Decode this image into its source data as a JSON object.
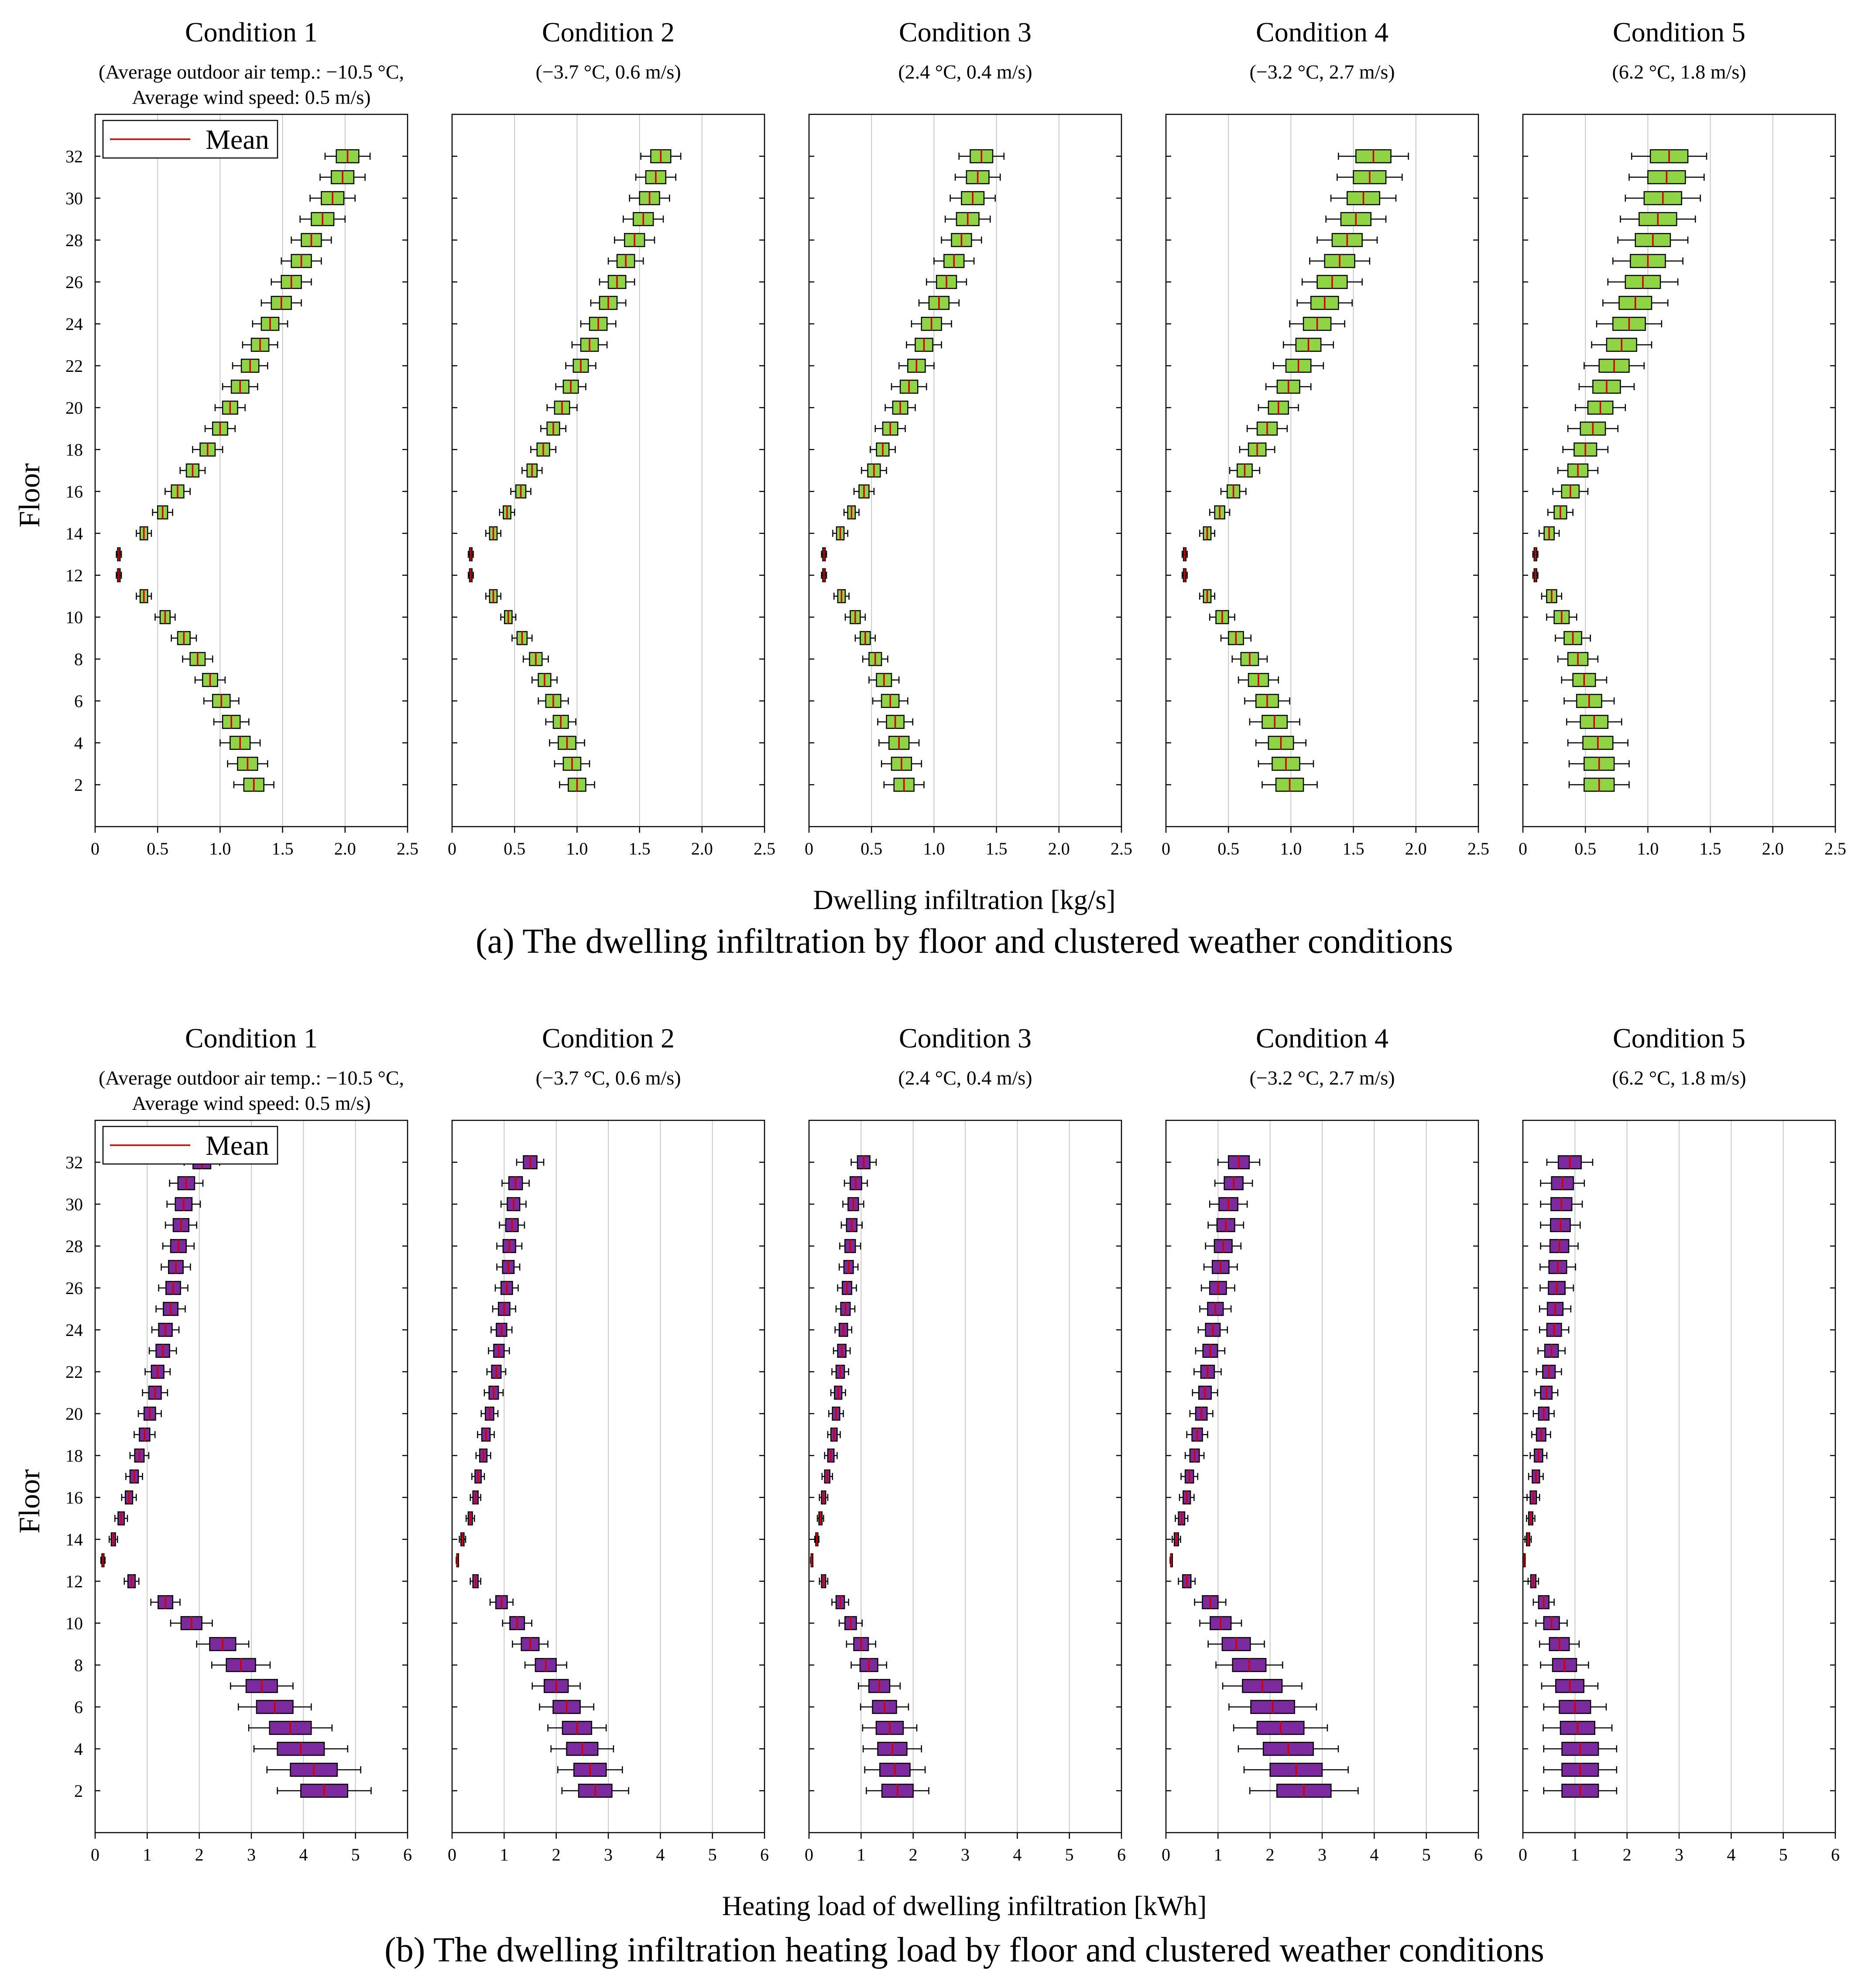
{
  "figure": {
    "row_a_caption": "(a) The dwelling infiltration by floor and clustered weather conditions",
    "row_b_caption": "(b) The dwelling infiltration heating load by floor and clustered weather conditions",
    "row_a_xlabel": "Dwelling infiltration [kg/s]",
    "row_b_xlabel": "Heating load of dwelling infiltration [kWh]",
    "ylabel": "Floor",
    "legend_label": "Mean",
    "box_color_a": "#8fd444",
    "box_color_b": "#7b2b9e",
    "mean_color": "#d40000"
  },
  "chart_data": [
    {
      "row": "a",
      "type": "box",
      "xlabel": "Dwelling infiltration [kg/s]",
      "ylabel": "Floor",
      "xlim": [
        0,
        2.5
      ],
      "ylim": [
        0,
        34
      ],
      "xticks": [
        "0",
        "0.5",
        "1.0",
        "1.5",
        "2.0",
        "2.5"
      ],
      "yticks": [
        "2",
        "4",
        "6",
        "8",
        "10",
        "12",
        "14",
        "16",
        "18",
        "20",
        "22",
        "24",
        "26",
        "28",
        "30",
        "32"
      ],
      "floors": [
        2,
        3,
        4,
        5,
        6,
        7,
        8,
        9,
        10,
        11,
        12,
        13,
        14,
        15,
        16,
        17,
        18,
        19,
        20,
        21,
        22,
        23,
        24,
        25,
        26,
        27,
        28,
        29,
        30,
        31,
        32
      ],
      "panels": [
        {
          "title": "Condition 1",
          "subtitle": "(Average outdoor air temp.: −10.5 °C,",
          "subtitle2": "Average wind speed: 0.5 m/s)",
          "mean": [
            1.27,
            1.22,
            1.16,
            1.09,
            1.01,
            0.92,
            0.82,
            0.71,
            0.56,
            0.39,
            0.19,
            0.19,
            0.39,
            0.54,
            0.66,
            0.78,
            0.9,
            1.0,
            1.08,
            1.16,
            1.24,
            1.32,
            1.4,
            1.49,
            1.57,
            1.65,
            1.73,
            1.82,
            1.9,
            1.98,
            2.02
          ],
          "spread": [
            0.08,
            0.08,
            0.08,
            0.07,
            0.07,
            0.06,
            0.06,
            0.05,
            0.04,
            0.03,
            0.01,
            0.01,
            0.03,
            0.04,
            0.05,
            0.05,
            0.06,
            0.06,
            0.06,
            0.07,
            0.07,
            0.07,
            0.07,
            0.08,
            0.08,
            0.08,
            0.08,
            0.09,
            0.09,
            0.09,
            0.09
          ]
        },
        {
          "title": "Condition 2",
          "subtitle": "(−3.7 °C, 0.6 m/s)",
          "subtitle2": "",
          "mean": [
            1.0,
            0.96,
            0.92,
            0.87,
            0.81,
            0.74,
            0.67,
            0.56,
            0.45,
            0.33,
            0.15,
            0.15,
            0.33,
            0.44,
            0.55,
            0.64,
            0.73,
            0.81,
            0.88,
            0.95,
            1.03,
            1.1,
            1.17,
            1.25,
            1.32,
            1.39,
            1.46,
            1.53,
            1.58,
            1.63,
            1.67
          ],
          "spread": [
            0.07,
            0.07,
            0.07,
            0.06,
            0.06,
            0.05,
            0.05,
            0.04,
            0.03,
            0.03,
            0.01,
            0.01,
            0.03,
            0.03,
            0.04,
            0.04,
            0.05,
            0.05,
            0.06,
            0.06,
            0.06,
            0.07,
            0.07,
            0.07,
            0.07,
            0.07,
            0.08,
            0.08,
            0.08,
            0.08,
            0.08
          ]
        },
        {
          "title": "Condition 3",
          "subtitle": "(2.4 °C, 0.4 m/s)",
          "subtitle2": "",
          "mean": [
            0.76,
            0.74,
            0.72,
            0.69,
            0.65,
            0.6,
            0.53,
            0.45,
            0.37,
            0.26,
            0.12,
            0.12,
            0.25,
            0.34,
            0.44,
            0.52,
            0.59,
            0.65,
            0.73,
            0.8,
            0.86,
            0.92,
            0.98,
            1.04,
            1.1,
            1.16,
            1.22,
            1.27,
            1.31,
            1.35,
            1.38
          ],
          "spread": [
            0.08,
            0.08,
            0.08,
            0.07,
            0.07,
            0.06,
            0.05,
            0.04,
            0.04,
            0.03,
            0.01,
            0.01,
            0.03,
            0.03,
            0.04,
            0.05,
            0.05,
            0.06,
            0.06,
            0.07,
            0.07,
            0.07,
            0.08,
            0.08,
            0.08,
            0.08,
            0.08,
            0.09,
            0.09,
            0.09,
            0.09
          ]
        },
        {
          "title": "Condition 4",
          "subtitle": "(−3.2 °C, 2.7 m/s)",
          "subtitle2": "",
          "mean": [
            0.99,
            0.96,
            0.92,
            0.87,
            0.81,
            0.74,
            0.67,
            0.56,
            0.45,
            0.33,
            0.15,
            0.15,
            0.33,
            0.43,
            0.54,
            0.63,
            0.73,
            0.81,
            0.9,
            0.98,
            1.06,
            1.14,
            1.21,
            1.27,
            1.33,
            1.39,
            1.45,
            1.52,
            1.58,
            1.63,
            1.66
          ],
          "spread": [
            0.11,
            0.11,
            0.1,
            0.1,
            0.09,
            0.08,
            0.07,
            0.06,
            0.05,
            0.03,
            0.01,
            0.01,
            0.03,
            0.04,
            0.05,
            0.06,
            0.07,
            0.08,
            0.08,
            0.09,
            0.1,
            0.1,
            0.11,
            0.11,
            0.12,
            0.12,
            0.12,
            0.12,
            0.13,
            0.13,
            0.14
          ]
        },
        {
          "title": "Condition 5",
          "subtitle": "(6.2 °C, 1.8 m/s)",
          "subtitle2": "",
          "mean": [
            0.61,
            0.61,
            0.6,
            0.57,
            0.53,
            0.49,
            0.44,
            0.4,
            0.31,
            0.23,
            0.1,
            0.1,
            0.21,
            0.3,
            0.38,
            0.44,
            0.5,
            0.56,
            0.62,
            0.67,
            0.73,
            0.79,
            0.85,
            0.9,
            0.96,
            1.0,
            1.04,
            1.08,
            1.12,
            1.15,
            1.17
          ],
          "spread": [
            0.12,
            0.12,
            0.12,
            0.11,
            0.1,
            0.09,
            0.08,
            0.07,
            0.06,
            0.04,
            0.01,
            0.01,
            0.04,
            0.05,
            0.07,
            0.08,
            0.09,
            0.1,
            0.1,
            0.11,
            0.12,
            0.12,
            0.13,
            0.13,
            0.14,
            0.14,
            0.14,
            0.15,
            0.15,
            0.15,
            0.15
          ]
        }
      ]
    },
    {
      "row": "b",
      "type": "box",
      "xlabel": "Heating load of dwelling infiltration [kWh]",
      "ylabel": "Floor",
      "xlim": [
        0,
        6
      ],
      "ylim": [
        0,
        34
      ],
      "xticks": [
        "0",
        "1",
        "2",
        "3",
        "4",
        "5",
        "6"
      ],
      "yticks": [
        "2",
        "4",
        "6",
        "8",
        "10",
        "12",
        "14",
        "16",
        "18",
        "20",
        "22",
        "24",
        "26",
        "28",
        "30",
        "32"
      ],
      "floors": [
        2,
        3,
        4,
        5,
        6,
        7,
        8,
        9,
        10,
        11,
        12,
        13,
        14,
        15,
        16,
        17,
        18,
        19,
        20,
        21,
        22,
        23,
        24,
        25,
        26,
        27,
        28,
        29,
        30,
        31,
        32
      ],
      "panels": [
        {
          "title": "Condition 1",
          "subtitle": "(Average outdoor air temp.: −10.5 °C,",
          "subtitle2": "Average wind speed: 0.5 m/s)",
          "mean": [
            4.4,
            4.2,
            3.95,
            3.75,
            3.45,
            3.2,
            2.8,
            2.45,
            1.85,
            1.35,
            0.7,
            0.15,
            0.35,
            0.5,
            0.65,
            0.75,
            0.85,
            0.95,
            1.05,
            1.15,
            1.2,
            1.3,
            1.35,
            1.45,
            1.5,
            1.55,
            1.6,
            1.65,
            1.7,
            1.75,
            2.05
          ],
          "spread": [
            0.45,
            0.45,
            0.45,
            0.4,
            0.35,
            0.3,
            0.28,
            0.25,
            0.2,
            0.14,
            0.07,
            0.02,
            0.04,
            0.06,
            0.07,
            0.08,
            0.09,
            0.1,
            0.11,
            0.12,
            0.12,
            0.13,
            0.13,
            0.14,
            0.14,
            0.14,
            0.15,
            0.15,
            0.16,
            0.16,
            0.17
          ]
        },
        {
          "title": "Condition 2",
          "subtitle": "(−3.7 °C, 0.6 m/s)",
          "subtitle2": "",
          "mean": [
            2.75,
            2.65,
            2.5,
            2.4,
            2.2,
            2.0,
            1.8,
            1.5,
            1.25,
            0.95,
            0.45,
            0.1,
            0.2,
            0.35,
            0.45,
            0.5,
            0.6,
            0.65,
            0.72,
            0.8,
            0.85,
            0.9,
            0.95,
            1.0,
            1.05,
            1.08,
            1.1,
            1.15,
            1.18,
            1.22,
            1.5
          ],
          "spread": [
            0.32,
            0.31,
            0.3,
            0.28,
            0.26,
            0.23,
            0.2,
            0.17,
            0.14,
            0.11,
            0.05,
            0.01,
            0.03,
            0.04,
            0.05,
            0.06,
            0.07,
            0.08,
            0.08,
            0.09,
            0.09,
            0.1,
            0.1,
            0.11,
            0.11,
            0.11,
            0.12,
            0.12,
            0.12,
            0.13,
            0.13
          ]
        },
        {
          "title": "Condition 3",
          "subtitle": "(2.4 °C, 0.4 m/s)",
          "subtitle2": "",
          "mean": [
            1.7,
            1.65,
            1.6,
            1.55,
            1.45,
            1.35,
            1.15,
            1.0,
            0.8,
            0.6,
            0.28,
            0.05,
            0.15,
            0.22,
            0.28,
            0.35,
            0.42,
            0.48,
            0.52,
            0.56,
            0.6,
            0.63,
            0.66,
            0.7,
            0.73,
            0.76,
            0.79,
            0.82,
            0.85,
            0.9,
            1.05
          ],
          "spread": [
            0.3,
            0.29,
            0.28,
            0.26,
            0.23,
            0.2,
            0.17,
            0.14,
            0.11,
            0.08,
            0.04,
            0.01,
            0.02,
            0.03,
            0.04,
            0.05,
            0.06,
            0.06,
            0.07,
            0.07,
            0.08,
            0.08,
            0.08,
            0.09,
            0.09,
            0.09,
            0.1,
            0.1,
            0.1,
            0.11,
            0.12
          ]
        },
        {
          "title": "Condition 4",
          "subtitle": "(−3.2 °C, 2.7 m/s)",
          "subtitle2": "",
          "mean": [
            2.65,
            2.5,
            2.35,
            2.2,
            2.05,
            1.85,
            1.6,
            1.35,
            1.05,
            0.85,
            0.4,
            0.1,
            0.2,
            0.3,
            0.4,
            0.45,
            0.55,
            0.6,
            0.68,
            0.75,
            0.8,
            0.85,
            0.9,
            0.95,
            1.0,
            1.05,
            1.1,
            1.15,
            1.2,
            1.3,
            1.4
          ],
          "spread": [
            0.52,
            0.5,
            0.48,
            0.45,
            0.42,
            0.38,
            0.32,
            0.27,
            0.2,
            0.15,
            0.08,
            0.01,
            0.04,
            0.06,
            0.07,
            0.08,
            0.09,
            0.1,
            0.11,
            0.12,
            0.13,
            0.14,
            0.14,
            0.15,
            0.16,
            0.16,
            0.17,
            0.17,
            0.18,
            0.18,
            0.2
          ]
        },
        {
          "title": "Condition 5",
          "subtitle": "(6.2 °C, 1.8 m/s)",
          "subtitle2": "",
          "mean": [
            1.1,
            1.1,
            1.1,
            1.05,
            1.0,
            0.9,
            0.8,
            0.7,
            0.55,
            0.4,
            0.2,
            0.02,
            0.1,
            0.15,
            0.2,
            0.25,
            0.3,
            0.35,
            0.4,
            0.45,
            0.5,
            0.55,
            0.6,
            0.62,
            0.65,
            0.67,
            0.7,
            0.72,
            0.74,
            0.76,
            0.9
          ],
          "spread": [
            0.35,
            0.35,
            0.35,
            0.33,
            0.3,
            0.27,
            0.23,
            0.19,
            0.15,
            0.1,
            0.05,
            0.01,
            0.03,
            0.04,
            0.06,
            0.07,
            0.08,
            0.09,
            0.1,
            0.11,
            0.12,
            0.13,
            0.14,
            0.15,
            0.16,
            0.17,
            0.18,
            0.19,
            0.2,
            0.21,
            0.22
          ]
        }
      ]
    }
  ]
}
